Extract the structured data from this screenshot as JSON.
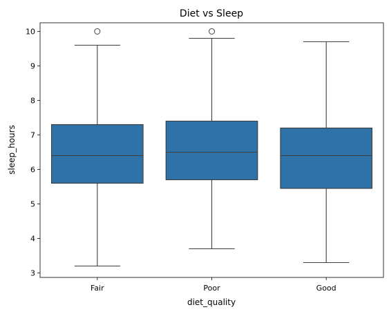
{
  "chart_data": {
    "type": "box",
    "title": "Diet vs Sleep",
    "xlabel": "diet_quality",
    "ylabel": "sleep_hours",
    "categories": [
      "Fair",
      "Poor",
      "Good"
    ],
    "yticks": [
      "3",
      "4",
      "5",
      "6",
      "7",
      "8",
      "9",
      "10"
    ],
    "ylim": [
      2.87,
      10.25
    ],
    "boxes": [
      {
        "category": "Fair",
        "whisker_low": 3.2,
        "q1": 5.6,
        "median": 6.4,
        "q3": 7.3,
        "whisker_high": 9.6,
        "outliers": [
          10.0
        ]
      },
      {
        "category": "Poor",
        "whisker_low": 3.7,
        "q1": 5.7,
        "median": 6.5,
        "q3": 7.4,
        "whisker_high": 9.8,
        "outliers": [
          10.0
        ]
      },
      {
        "category": "Good",
        "whisker_low": 3.3,
        "q1": 5.45,
        "median": 6.4,
        "q3": 7.2,
        "whisker_high": 9.7,
        "outliers": []
      }
    ],
    "grid": false,
    "colors": {
      "box_fill": "#2e72a8",
      "lines": "#3d3d3d",
      "frame": "#000000"
    }
  }
}
